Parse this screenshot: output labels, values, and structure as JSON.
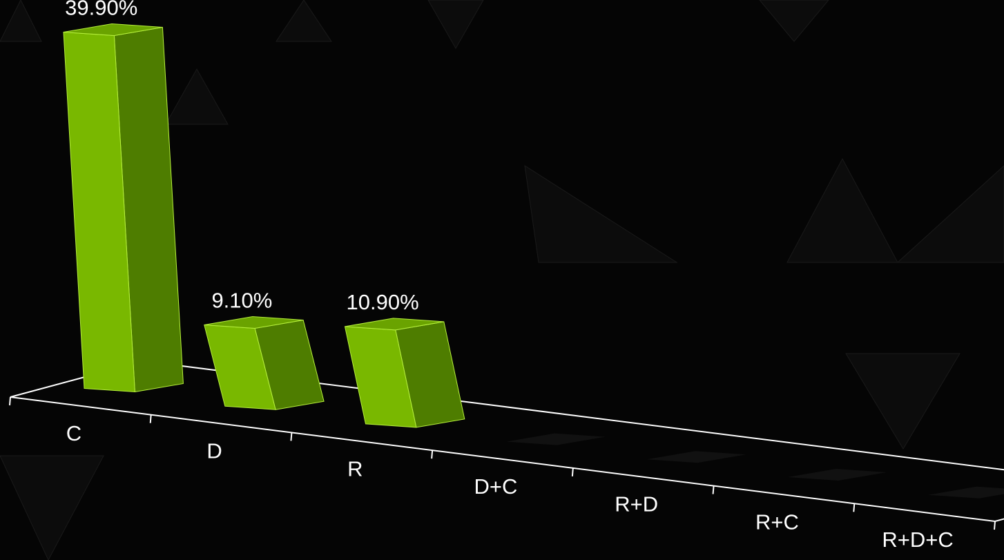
{
  "chart_data": {
    "type": "bar",
    "title": "",
    "xlabel": "",
    "ylabel": "",
    "categories": [
      "C",
      "D",
      "R",
      "D+C",
      "R+D",
      "R+C",
      "R+D+C"
    ],
    "values": [
      39.9,
      9.1,
      10.9,
      0,
      0,
      0,
      0
    ],
    "data_labels": [
      "39.90%",
      "9.10%",
      "10.90%",
      "",
      "",
      "",
      ""
    ],
    "ylim": [
      0,
      40
    ],
    "grid": false,
    "legend": "none",
    "colors": {
      "bar_front": "#79b800",
      "bar_side": "#4e7d00",
      "bar_top": "#6aa300",
      "bar_edge": "#b6f03c",
      "axis": "#ffffff",
      "text": "#ffffff",
      "background": "#050505"
    }
  }
}
